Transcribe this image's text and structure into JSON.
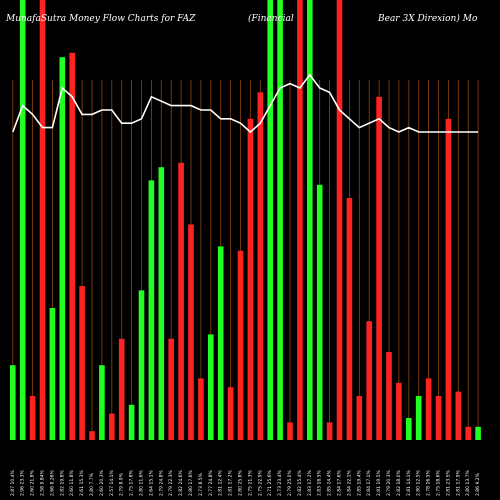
{
  "chart_data": {
    "type": "bar",
    "title_parts": [
      "MunafaSutra  Money Flow  Charts for FAZ",
      "(Financial",
      "Bear 3X  Direxion) Mo"
    ],
    "ylim": [
      0,
      100
    ],
    "grid": "vertical",
    "colors": {
      "background": "#000000",
      "gridline": "#8B4513",
      "up": "#22ff22",
      "down": "#ff2222",
      "line": "#ffffff"
    },
    "categories": [
      "2.87 10.4%",
      "2.96 23.3%",
      "2.60 21.8%",
      "2.58 9.84%",
      "2.66 8.26%",
      "2.82 19.8%",
      "2.60 11.8%",
      "2.61 15.3%",
      "2.80 7.7%",
      "2.60 20.3%",
      "2.57 14.1%",
      "2.79 8.9%",
      "2.75 17.8%",
      "2.80 11.6%",
      "2.64 15.1%",
      "2.79 24.8%",
      "2.79 22.3%",
      "2.82 24.6%",
      "2.80 17.6%",
      "2.73 8.5%",
      "2.77 24.8%",
      "2.81 12.4%",
      "2.81 17.2%",
      "2.80 25.8%",
      "2.75 21.3%",
      "2.75 22.9%",
      "2.71 25.6%",
      "2.73 23.4%",
      "2.79 25.0%",
      "2.82 15.4%",
      "2.83 17.2%",
      "2.83 18.5%",
      "2.85 24.4%",
      "2.84 17.6%",
      "2.84 22.1%",
      "2.85 19.4%",
      "2.84 17.1%",
      "2.81 19.5%",
      "2.79 20.3%",
      "2.82 18.0%",
      "2.81 14.1%",
      "2.80 12.5%",
      "2.78 16.5%",
      "2.75 18.6%",
      "2.81 23.5%",
      "2.81 17.9%",
      "2.80 13.7%",
      "2.86 9.2%"
    ],
    "series": [
      {
        "key": "volume",
        "values": [
          17,
          100,
          10,
          100,
          30,
          87,
          88,
          35,
          2,
          17,
          6,
          23,
          8,
          34,
          59,
          62,
          23,
          63,
          49,
          14,
          24,
          44,
          12,
          43,
          73,
          79,
          100,
          100,
          4,
          100,
          100,
          58,
          4,
          100,
          55,
          10,
          27,
          78,
          20,
          13,
          5,
          10,
          14,
          10,
          73,
          11,
          3,
          3
        ],
        "colors": [
          "up",
          "up",
          "down",
          "down",
          "up",
          "up",
          "down",
          "down",
          "down",
          "up",
          "down",
          "down",
          "up",
          "up",
          "up",
          "up",
          "down",
          "down",
          "down",
          "down",
          "up",
          "up",
          "down",
          "down",
          "down",
          "down",
          "up",
          "up",
          "down",
          "down",
          "up",
          "up",
          "down",
          "down",
          "down",
          "down",
          "down",
          "down",
          "down",
          "down",
          "up",
          "up",
          "down",
          "down",
          "down",
          "down",
          "down",
          "up"
        ]
      },
      {
        "key": "mfi",
        "values": [
          70,
          76,
          74,
          71,
          71,
          80,
          78,
          74,
          74,
          75,
          75,
          72,
          72,
          73,
          78,
          77,
          76,
          76,
          76,
          75,
          75,
          73,
          73,
          72,
          70,
          72,
          76,
          80,
          81,
          80,
          83,
          80,
          79,
          75,
          73,
          71,
          72,
          73,
          71,
          70,
          71,
          70,
          70,
          70,
          70,
          70,
          70,
          70
        ]
      }
    ]
  }
}
